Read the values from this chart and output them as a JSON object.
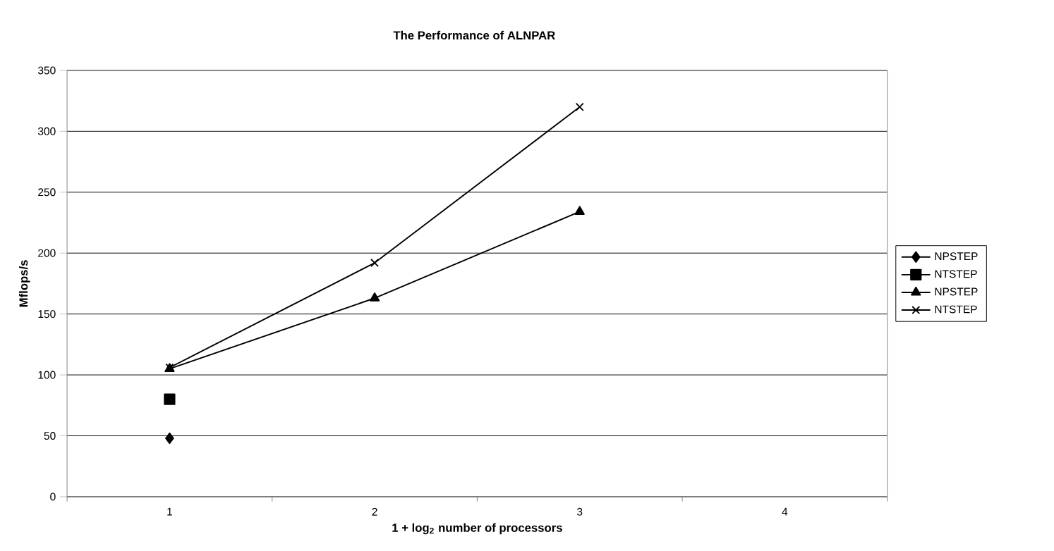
{
  "chart_data": {
    "type": "line",
    "title": "The Performance of ALNPAR",
    "xlabel": "1 + log$_{2}$ number of processors",
    "ylabel": "Mflops/s",
    "categories": [
      "1",
      "2",
      "3",
      "4"
    ],
    "series": [
      {
        "name": "NPSTEP",
        "color": "#000000",
        "marker": "diamond",
        "values": [
          48,
          null,
          null,
          null
        ]
      },
      {
        "name": "NTSTEP",
        "color": "#000000",
        "marker": "square",
        "values": [
          80,
          null,
          null,
          null
        ]
      },
      {
        "name": "NPSTEP",
        "color": "#000000",
        "marker": "triangle",
        "values": [
          105,
          163,
          234,
          null
        ]
      },
      {
        "name": "NTSTEP",
        "color": "#000000",
        "marker": "cross",
        "values": [
          106,
          192,
          320,
          null
        ]
      }
    ],
    "ylim": [
      0,
      350
    ],
    "yticks": [
      0,
      50,
      100,
      150,
      200,
      250,
      300,
      350
    ],
    "grid": "y",
    "legend": "right",
    "line_style": "solid"
  }
}
